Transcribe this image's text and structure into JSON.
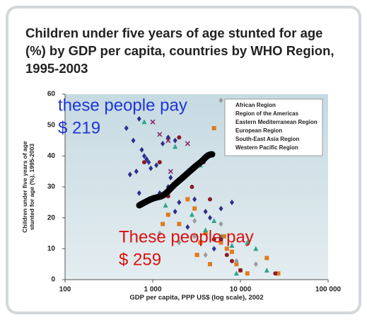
{
  "chart_data": {
    "type": "scatter",
    "title": "Children under five years of age stunted for age (%) by GDP per capita, countries by WHO Region, 1995-2003",
    "xlabel": "GDP per capita, PPP US$ (log scale), 2002",
    "ylabel": [
      "Children under five years of age",
      "stunted for age (%), 1995-2003"
    ],
    "xscale": "log",
    "xlim": [
      100,
      100000
    ],
    "ylim": [
      0,
      60
    ],
    "xticks": [
      100,
      {
        "value": 1000,
        "label": "1 000"
      },
      {
        "value": 10000,
        "label": "10 000"
      },
      {
        "value": 100000,
        "label": "100 000"
      }
    ],
    "yticks": [
      0,
      10,
      20,
      30,
      40,
      50,
      60
    ],
    "grid": false,
    "legend": "upper right",
    "series": [
      {
        "name": "African Region",
        "color": "#2b2f8c",
        "marker": "diamond",
        "x": [
          500,
          600,
          700,
          800,
          900,
          650,
          550,
          1100,
          1200,
          1500,
          700,
          900,
          1800,
          2000,
          3000,
          4000,
          6000,
          8000,
          1300,
          1500,
          1800,
          850,
          950,
          750,
          2500,
          5000,
          4500,
          1600
        ],
        "values": [
          49,
          45,
          52,
          40,
          38,
          35,
          34,
          37,
          28,
          30,
          28,
          26,
          22,
          25,
          26,
          22,
          23,
          25,
          44,
          46,
          45,
          39,
          36,
          42,
          17,
          10,
          20,
          33
        ]
      },
      {
        "name": "Region of the Americas",
        "color": "#e07b1a",
        "marker": "square",
        "x": [
          1300,
          1500,
          2000,
          2500,
          3000,
          3500,
          4000,
          5000,
          6000,
          7000,
          8000,
          9000,
          10000,
          12000,
          4500,
          27000,
          20000,
          6500,
          3200
        ],
        "values": [
          18,
          21,
          18,
          26,
          23,
          12,
          15,
          49,
          12,
          10,
          9,
          5,
          3,
          2,
          5,
          2,
          7,
          14,
          8
        ]
      },
      {
        "name": "Eastern Mediterranean Region",
        "color": "#2aa58a",
        "marker": "triangle",
        "x": [
          800,
          1800,
          3500,
          2800,
          4000,
          5000,
          6000,
          8000,
          12000,
          15000,
          20000,
          1400,
          9000
        ],
        "values": [
          51,
          43,
          37,
          21,
          16,
          19,
          14,
          11,
          12,
          10,
          3,
          24,
          2
        ]
      },
      {
        "name": "European Region",
        "color": "#9a9a9a",
        "marker": "diamond",
        "x": [
          1200,
          2000,
          3000,
          4000,
          6000,
          9000,
          15000,
          6000,
          3000
        ],
        "values": [
          15,
          12,
          14,
          8,
          18,
          6,
          5,
          58,
          19
        ]
      },
      {
        "name": "South-East Asia Region",
        "color": "#8b2a6b",
        "marker": "cross",
        "x": [
          1000,
          1500,
          1200,
          2500,
          1600
        ],
        "values": [
          51,
          45,
          47,
          44,
          35
        ]
      },
      {
        "name": "Western Pacific Region",
        "color": "#8b1a2a",
        "marker": "circle",
        "x": [
          800,
          1200,
          2000,
          2800,
          3800,
          5000,
          6000,
          7000,
          10000,
          25000,
          4500,
          1500,
          8000
        ],
        "values": [
          38,
          38,
          46,
          30,
          38,
          13,
          13,
          8,
          3,
          2,
          26,
          27,
          6
        ]
      }
    ],
    "annotations": [
      {
        "text": "these people pay",
        "color": "#1f35d6"
      },
      {
        "text": "$ 219",
        "color": "#1f35d6"
      },
      {
        "text": "These people pay",
        "color": "#d9120f"
      },
      {
        "text": "$ 259",
        "color": "#d9120f"
      }
    ]
  }
}
